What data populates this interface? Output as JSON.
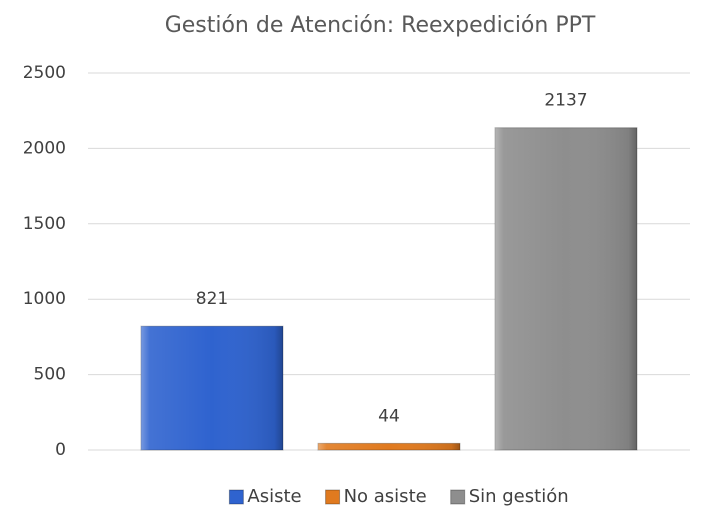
{
  "chart_data": {
    "type": "bar",
    "title": "Gestión de Atención: Reexpedición PPT",
    "categories": [
      null
    ],
    "series": [
      {
        "name": "Asiste",
        "color": "#2f63cf",
        "values": [
          821
        ]
      },
      {
        "name": "No asiste",
        "color": "#e07a1f",
        "values": [
          44
        ]
      },
      {
        "name": "Sin gestión",
        "color": "#8e8e8e",
        "values": [
          2137
        ]
      }
    ],
    "ylim": [
      0,
      2500
    ],
    "yticks": [
      0,
      500,
      1000,
      1500,
      2000,
      2500
    ],
    "grid": true,
    "legend": "bottom"
  }
}
